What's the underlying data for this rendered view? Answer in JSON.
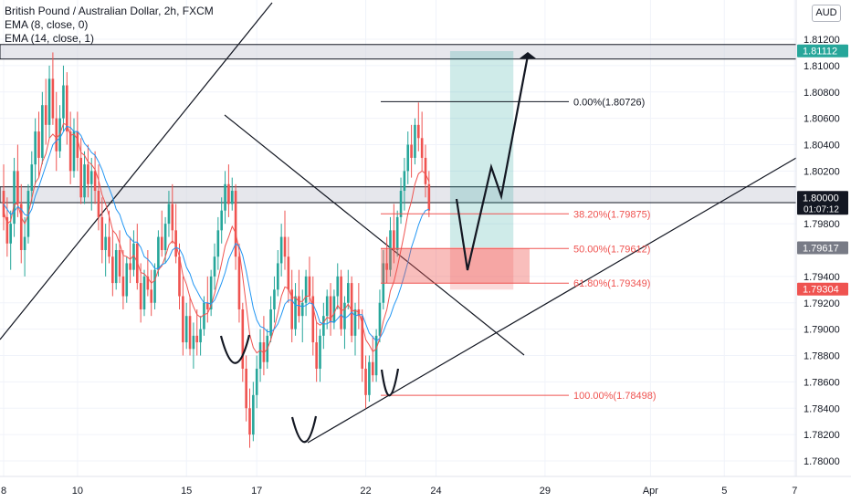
{
  "chart_data": {
    "type": "candlestick",
    "title": "British Pound / Australian Dollar, 2h, FXCM",
    "symbol": "GBPAUD",
    "indicators": [
      "EMA (8, close, 0)",
      "EMA (14, close, 1)"
    ],
    "currency_label": "AUD",
    "y_range": [
      1.779,
      1.813
    ],
    "y_ticks": [
      {
        "value": 1.812,
        "label": "1.81200"
      },
      {
        "value": 1.81,
        "label": "1.81000"
      },
      {
        "value": 1.808,
        "label": "1.80800"
      },
      {
        "value": 1.806,
        "label": "1.80600"
      },
      {
        "value": 1.804,
        "label": "1.80400"
      },
      {
        "value": 1.802,
        "label": "1.80200"
      },
      {
        "value": 1.798,
        "label": "1.79800"
      },
      {
        "value": 1.794,
        "label": "1.79400"
      },
      {
        "value": 1.792,
        "label": "1.79200"
      },
      {
        "value": 1.79,
        "label": "1.79000"
      },
      {
        "value": 1.788,
        "label": "1.78800"
      },
      {
        "value": 1.786,
        "label": "1.78600"
      },
      {
        "value": 1.784,
        "label": "1.78400"
      },
      {
        "value": 1.782,
        "label": "1.78200"
      },
      {
        "value": 1.78,
        "label": "1.78000"
      }
    ],
    "x_ticks": [
      {
        "t": 0,
        "label": "8"
      },
      {
        "t": 21,
        "label": "10"
      },
      {
        "t": 52,
        "label": "15"
      },
      {
        "t": 72,
        "label": "17"
      },
      {
        "t": 103,
        "label": "22"
      },
      {
        "t": 123,
        "label": "24"
      },
      {
        "t": 154,
        "label": "29"
      },
      {
        "t": 184,
        "label": "Apr"
      },
      {
        "t": 205,
        "label": "5"
      },
      {
        "t": 225,
        "label": "7"
      }
    ],
    "price_badges": [
      {
        "value": 1.81112,
        "label": "1.81112",
        "color": "#26a69a"
      },
      {
        "value": 1.8,
        "label": "1.80000",
        "sub": "01:07:12",
        "color": "#131722"
      },
      {
        "value": 1.79617,
        "label": "1.79617",
        "color": "#787b86"
      },
      {
        "value": 1.79304,
        "label": "1.79304",
        "color": "#ef5350"
      }
    ],
    "fib_levels": [
      {
        "value": 1.80726,
        "label": "0.00%(1.80726)",
        "color": "#131722"
      },
      {
        "value": 1.79875,
        "label": "38.20%(1.79875)",
        "color": "#ef5350"
      },
      {
        "value": 1.79612,
        "label": "50.00%(1.79612)",
        "color": "#ef5350"
      },
      {
        "value": 1.79349,
        "label": "61.80%(1.79349)",
        "color": "#ef5350"
      },
      {
        "value": 1.78498,
        "label": "100.00%(1.78498)",
        "color": "#ef5350"
      }
    ],
    "zones": [
      {
        "from": 1.8105,
        "to": 1.8116,
        "color": "#d1d4dc"
      },
      {
        "from": 1.7996,
        "to": 1.8008,
        "color": "#d1d4dc"
      }
    ],
    "position": {
      "t_start": 127,
      "t_end": 145,
      "entry": 1.7962,
      "stop": 1.793,
      "target": 1.8111
    },
    "ohlc": [
      [
        1.8005,
        1.8025,
        1.7975,
        1.7985
      ],
      [
        1.7985,
        1.8,
        1.7955,
        1.7965
      ],
      [
        1.7965,
        1.799,
        1.7945,
        1.798
      ],
      [
        1.798,
        1.803,
        1.797,
        1.802
      ],
      [
        1.802,
        1.804,
        1.7985,
        1.7995
      ],
      [
        1.7995,
        1.801,
        1.795,
        1.796
      ],
      [
        1.796,
        1.7985,
        1.794,
        1.797
      ],
      [
        1.797,
        1.801,
        1.7965,
        1.8005
      ],
      [
        1.8005,
        1.8035,
        1.7995,
        1.8025
      ],
      [
        1.8025,
        1.806,
        1.801,
        1.805
      ],
      [
        1.805,
        1.8065,
        1.8015,
        1.803
      ],
      [
        1.803,
        1.808,
        1.8025,
        1.807
      ],
      [
        1.807,
        1.809,
        1.804,
        1.8055
      ],
      [
        1.8055,
        1.81,
        1.8045,
        1.809
      ],
      [
        1.809,
        1.811,
        1.8055,
        1.806
      ],
      [
        1.806,
        1.808,
        1.802,
        1.8035
      ],
      [
        1.8035,
        1.807,
        1.803,
        1.806
      ],
      [
        1.806,
        1.81,
        1.805,
        1.8085
      ],
      [
        1.8085,
        1.8095,
        1.804,
        1.805
      ],
      [
        1.805,
        1.8065,
        1.801,
        1.802
      ],
      [
        1.802,
        1.806,
        1.8015,
        1.805
      ],
      [
        1.805,
        1.8065,
        1.802,
        1.803
      ],
      [
        1.803,
        1.8045,
        1.7995,
        1.8
      ],
      [
        1.8,
        1.8035,
        1.7995,
        1.8025
      ],
      [
        1.8025,
        1.804,
        1.8,
        1.801
      ],
      [
        1.801,
        1.803,
        1.799,
        1.802
      ],
      [
        1.802,
        1.8035,
        1.7995,
        1.8005
      ],
      [
        1.8005,
        1.8025,
        1.7975,
        1.7985
      ],
      [
        1.7985,
        1.8,
        1.795,
        1.796
      ],
      [
        1.796,
        1.798,
        1.794,
        1.797
      ],
      [
        1.797,
        1.799,
        1.795,
        1.7955
      ],
      [
        1.7955,
        1.7975,
        1.7925,
        1.7935
      ],
      [
        1.7935,
        1.7965,
        1.793,
        1.796
      ],
      [
        1.796,
        1.7975,
        1.7935,
        1.794
      ],
      [
        1.794,
        1.796,
        1.7915,
        1.7925
      ],
      [
        1.7925,
        1.7955,
        1.792,
        1.795
      ],
      [
        1.795,
        1.797,
        1.7935,
        1.7945
      ],
      [
        1.7945,
        1.7975,
        1.794,
        1.7965
      ],
      [
        1.7965,
        1.798,
        1.793,
        1.7935
      ],
      [
        1.7935,
        1.795,
        1.7905,
        1.7915
      ],
      [
        1.7915,
        1.7945,
        1.791,
        1.794
      ],
      [
        1.794,
        1.796,
        1.7925,
        1.793
      ],
      [
        1.793,
        1.7945,
        1.791,
        1.792
      ],
      [
        1.792,
        1.795,
        1.7915,
        1.7945
      ],
      [
        1.7945,
        1.7975,
        1.794,
        1.797
      ],
      [
        1.797,
        1.799,
        1.7955,
        1.796
      ],
      [
        1.796,
        1.7985,
        1.795,
        1.798
      ],
      [
        1.798,
        1.8005,
        1.797,
        1.7995
      ],
      [
        1.7995,
        1.801,
        1.7965,
        1.7975
      ],
      [
        1.7975,
        1.7995,
        1.795,
        1.7955
      ],
      [
        1.7955,
        1.7965,
        1.7915,
        1.7925
      ],
      [
        1.7925,
        1.794,
        1.788,
        1.789
      ],
      [
        1.789,
        1.792,
        1.7885,
        1.791
      ],
      [
        1.791,
        1.7925,
        1.788,
        1.7885
      ],
      [
        1.7885,
        1.7905,
        1.787,
        1.7895
      ],
      [
        1.7895,
        1.7915,
        1.788,
        1.789
      ],
      [
        1.789,
        1.791,
        1.788,
        1.79
      ],
      [
        1.79,
        1.7925,
        1.7895,
        1.792
      ],
      [
        1.792,
        1.794,
        1.7905,
        1.7915
      ],
      [
        1.7915,
        1.7945,
        1.791,
        1.794
      ],
      [
        1.794,
        1.7965,
        1.793,
        1.7955
      ],
      [
        1.7955,
        1.7985,
        1.7945,
        1.7975
      ],
      [
        1.7975,
        1.8,
        1.7965,
        1.799
      ],
      [
        1.799,
        1.802,
        1.798,
        1.801
      ],
      [
        1.801,
        1.8025,
        1.7985,
        1.7995
      ],
      [
        1.7995,
        1.8015,
        1.799,
        1.8005
      ],
      [
        1.8005,
        1.801,
        1.7945,
        1.7955
      ],
      [
        1.7955,
        1.7965,
        1.7905,
        1.7915
      ],
      [
        1.7915,
        1.792,
        1.786,
        1.787
      ],
      [
        1.787,
        1.788,
        1.783,
        1.784
      ],
      [
        1.784,
        1.7855,
        1.781,
        1.782
      ],
      [
        1.782,
        1.786,
        1.7815,
        1.785
      ],
      [
        1.785,
        1.788,
        1.784,
        1.787
      ],
      [
        1.787,
        1.79,
        1.786,
        1.789
      ],
      [
        1.789,
        1.791,
        1.7865,
        1.7875
      ],
      [
        1.7875,
        1.79,
        1.787,
        1.7895
      ],
      [
        1.7895,
        1.7925,
        1.789,
        1.7915
      ],
      [
        1.7915,
        1.794,
        1.7905,
        1.793
      ],
      [
        1.793,
        1.796,
        1.7925,
        1.795
      ],
      [
        1.795,
        1.798,
        1.794,
        1.797
      ],
      [
        1.797,
        1.799,
        1.7945,
        1.7955
      ],
      [
        1.7955,
        1.797,
        1.792,
        1.793
      ],
      [
        1.793,
        1.7945,
        1.789,
        1.79
      ],
      [
        1.79,
        1.7935,
        1.7895,
        1.7925
      ],
      [
        1.7925,
        1.7945,
        1.7905,
        1.791
      ],
      [
        1.791,
        1.793,
        1.789,
        1.792
      ],
      [
        1.792,
        1.7945,
        1.791,
        1.794
      ],
      [
        1.794,
        1.7955,
        1.792,
        1.7925
      ],
      [
        1.7925,
        1.794,
        1.788,
        1.789
      ],
      [
        1.789,
        1.7905,
        1.786,
        1.787
      ],
      [
        1.787,
        1.79,
        1.786,
        1.7895
      ],
      [
        1.7895,
        1.792,
        1.7885,
        1.791
      ],
      [
        1.791,
        1.793,
        1.79,
        1.7925
      ],
      [
        1.7925,
        1.7935,
        1.7895,
        1.7905
      ],
      [
        1.7905,
        1.793,
        1.79,
        1.7925
      ],
      [
        1.7925,
        1.795,
        1.7915,
        1.794
      ],
      [
        1.794,
        1.7945,
        1.7895,
        1.79
      ],
      [
        1.79,
        1.7925,
        1.7885,
        1.792
      ],
      [
        1.792,
        1.7945,
        1.7915,
        1.7935
      ],
      [
        1.7935,
        1.794,
        1.789,
        1.7895
      ],
      [
        1.7895,
        1.792,
        1.788,
        1.7915
      ],
      [
        1.7915,
        1.7935,
        1.79,
        1.791
      ],
      [
        1.791,
        1.7915,
        1.786,
        1.787
      ],
      [
        1.787,
        1.788,
        1.784,
        1.785
      ],
      [
        1.785,
        1.788,
        1.7845,
        1.7875
      ],
      [
        1.7875,
        1.7895,
        1.786,
        1.7865
      ],
      [
        1.7865,
        1.79,
        1.786,
        1.7895
      ],
      [
        1.7895,
        1.793,
        1.789,
        1.792
      ],
      [
        1.792,
        1.796,
        1.7915,
        1.795
      ],
      [
        1.795,
        1.797,
        1.7935,
        1.7945
      ],
      [
        1.7945,
        1.7985,
        1.794,
        1.7975
      ],
      [
        1.7975,
        1.7995,
        1.795,
        1.796
      ],
      [
        1.796,
        1.799,
        1.7955,
        1.7985
      ],
      [
        1.7985,
        1.8015,
        1.798,
        1.8005
      ],
      [
        1.8005,
        1.803,
        1.799,
        1.802
      ],
      [
        1.802,
        1.805,
        1.801,
        1.804
      ],
      [
        1.804,
        1.8055,
        1.8015,
        1.803
      ],
      [
        1.803,
        1.806,
        1.8025,
        1.8055
      ],
      [
        1.8055,
        1.8072,
        1.8035,
        1.8045
      ],
      [
        1.8045,
        1.8065,
        1.802,
        1.803
      ],
      [
        1.803,
        1.804,
        1.8,
        1.801
      ],
      [
        1.801,
        1.802,
        1.7985,
        1.799
      ]
    ],
    "ema8": [
      1.799,
      1.798,
      1.7982,
      1.7995,
      1.7995,
      1.7985,
      1.798,
      1.7987,
      1.7999,
      1.8011,
      1.8015,
      1.8027,
      1.8033,
      1.8045,
      1.8048,
      1.8045,
      1.8048,
      1.8056,
      1.8055,
      1.8047,
      1.8048,
      1.8044,
      1.8034,
      1.8032,
      1.8027,
      1.8025,
      1.8021,
      1.8013,
      1.8002,
      1.7995,
      1.7986,
      1.7975,
      1.7972,
      1.7965,
      1.7956,
      1.7955,
      1.7953,
      1.7956,
      1.7951,
      1.7943,
      1.7942,
      1.7939,
      1.7935,
      1.7937,
      1.7945,
      1.7948,
      1.7955,
      1.7964,
      1.7967,
      1.7964,
      1.7955,
      1.7941,
      1.7934,
      1.7924,
      1.7917,
      1.7911,
      1.7909,
      1.7911,
      1.7912,
      1.7918,
      1.7927,
      1.7938,
      1.795,
      1.7963,
      1.797,
      1.7978,
      1.7973,
      1.796,
      1.794,
      1.7918,
      1.7896,
      1.7886,
      1.7882,
      1.7884,
      1.7882,
      1.7885,
      1.7892,
      1.7901,
      1.7912,
      1.7925,
      1.7932,
      1.7931,
      1.7924,
      1.7924,
      1.7921,
      1.7921,
      1.7925,
      1.7925,
      1.7917,
      1.7905,
      1.7903,
      1.7905,
      1.7909,
      1.7908,
      1.7912,
      1.7918,
      1.7914,
      1.7915,
      1.7919,
      1.7914,
      1.7914,
      1.7913,
      1.7904,
      1.7892,
      1.7888,
      1.7883,
      1.7885,
      1.7893,
      1.7906,
      1.7915,
      1.7929,
      1.7936,
      1.7947,
      1.796,
      1.7973,
      1.7988,
      1.7997,
      1.801,
      1.8018,
      1.802,
      1.8018,
      1.8012
    ],
    "ema14": [
      1.7995,
      1.7991,
      1.7987,
      1.7989,
      1.7993,
      1.7991,
      1.7987,
      1.7986,
      1.7991,
      1.8001,
      1.8008,
      1.8016,
      1.8024,
      1.8032,
      1.804,
      1.8043,
      1.8045,
      1.805,
      1.8054,
      1.8053,
      1.805,
      1.805,
      1.8047,
      1.8041,
      1.8038,
      1.8034,
      1.8032,
      1.8027,
      1.8021,
      1.8013,
      1.8007,
      1.8,
      1.7991,
      1.7987,
      1.7979,
      1.7972,
      1.7969,
      1.7966,
      1.7966,
      1.7962,
      1.7955,
      1.7953,
      1.795,
      1.7946,
      1.7946,
      1.7949,
      1.795,
      1.7954,
      1.796,
      1.7962,
      1.7961,
      1.7956,
      1.7947,
      1.7942,
      1.7934,
      1.7929,
      1.7924,
      1.792,
      1.792,
      1.7919,
      1.7922,
      1.7928,
      1.7935,
      1.7943,
      1.7953,
      1.7959,
      1.7965,
      1.7963,
      1.7956,
      1.7944,
      1.793,
      1.7916,
      1.7907,
      1.7902,
      1.7901,
      1.7898,
      1.7898,
      1.79,
      1.7904,
      1.7911,
      1.7919,
      1.7922,
      1.7922,
      1.7918,
      1.7918,
      1.7917,
      1.7918,
      1.792,
      1.7919,
      1.7913,
      1.7905,
      1.7904,
      1.7904,
      1.7906,
      1.7905,
      1.7908,
      1.7911,
      1.7908,
      1.791,
      1.7913,
      1.791,
      1.7911,
      1.7911,
      1.7904,
      1.7897,
      1.7894,
      1.7891,
      1.7893,
      1.7898,
      1.7905,
      1.791,
      1.7918,
      1.7924,
      1.7932,
      1.7941,
      1.7951,
      1.7962,
      1.797,
      1.7979,
      1.7986,
      1.799,
      1.7991
    ]
  }
}
